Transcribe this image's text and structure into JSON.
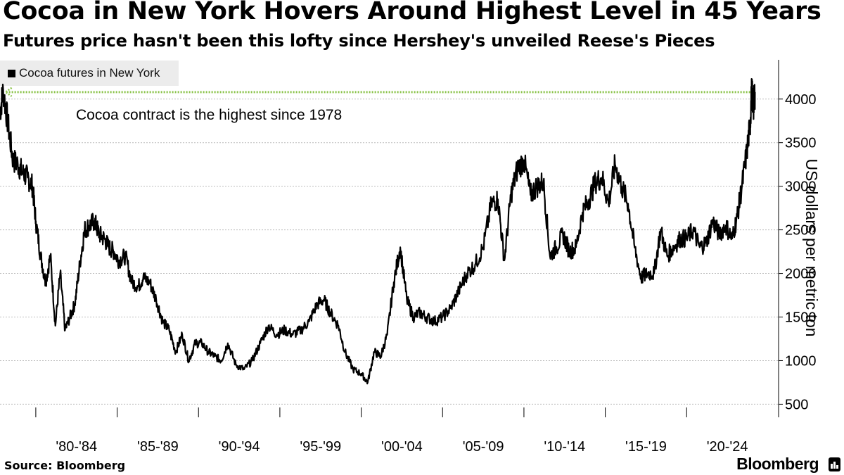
{
  "header": {
    "title": "Cocoa in New York Hovers Around Highest Level in 45 Years",
    "subtitle": "Futures price hasn't been this lofty since Hershey's unveiled Reese's Pieces"
  },
  "legend": {
    "label": "Cocoa futures in New York"
  },
  "annotation": {
    "text": "Cocoa contract is the highest since 1978"
  },
  "axis": {
    "ylabel": "US dollars per metric ton"
  },
  "footer": {
    "source": "Source: Bloomberg",
    "brand": "Bloomberg"
  },
  "colors": {
    "series": "#000000",
    "annotation_arrow": "#8bc34a",
    "gridline": "#bdbdbd"
  },
  "chart_data": {
    "type": "line",
    "title": "Cocoa in New York Hovers Around Highest Level in 45 Years",
    "subtitle": "Futures price hasn't been this lofty since Hershey's unveiled Reese's Pieces",
    "xlabel": "",
    "ylabel": "US dollars per metric ton",
    "x_tick_labels": [
      "'80-'84",
      "'85-'89",
      "'90-'94",
      "'95-'99",
      "'00-'04",
      "'05-'09",
      "'10-'14",
      "'15-'19",
      "'20-'24"
    ],
    "y_ticks": [
      500,
      1000,
      1500,
      2000,
      2500,
      3000,
      3500,
      4000
    ],
    "xlim": [
      1977.8,
      2024.7
    ],
    "ylim": [
      350,
      4450
    ],
    "grid": "horizontal dashed",
    "legend_position": "top-left",
    "annotation": {
      "text": "Cocoa contract is the highest since 1978",
      "level": 4080,
      "from_year": 1978.0,
      "to_year": 2024.2
    },
    "series": [
      {
        "name": "Cocoa futures in New York",
        "x": [
          1977.8,
          1978.0,
          1978.3,
          1978.6,
          1978.9,
          1979.2,
          1979.5,
          1979.8,
          1980.0,
          1980.3,
          1980.6,
          1980.9,
          1981.2,
          1981.5,
          1981.8,
          1982.1,
          1982.4,
          1982.7,
          1983.0,
          1983.3,
          1983.6,
          1983.9,
          1984.2,
          1984.5,
          1984.8,
          1985.1,
          1985.5,
          1985.9,
          1986.3,
          1986.6,
          1987.0,
          1987.4,
          1987.8,
          1988.2,
          1988.6,
          1989.0,
          1989.4,
          1989.8,
          1990.2,
          1990.6,
          1991.0,
          1991.4,
          1991.8,
          1992.3,
          1992.8,
          1993.3,
          1993.8,
          1994.3,
          1994.8,
          1995.3,
          1995.8,
          1996.3,
          1996.8,
          1997.3,
          1997.7,
          1998.1,
          1998.6,
          1999.0,
          1999.5,
          2000.0,
          2000.4,
          2000.8,
          2001.2,
          2001.6,
          2002.0,
          2002.4,
          2002.8,
          2003.2,
          2003.6,
          2004.0,
          2004.5,
          2005.0,
          2005.5,
          2006.0,
          2006.5,
          2007.0,
          2007.5,
          2008.0,
          2008.4,
          2008.8,
          2009.2,
          2009.6,
          2010.0,
          2010.4,
          2010.8,
          2011.2,
          2011.6,
          2012.0,
          2012.4,
          2012.8,
          2013.2,
          2013.6,
          2014.0,
          2014.4,
          2014.8,
          2015.2,
          2015.6,
          2016.0,
          2016.4,
          2016.8,
          2017.2,
          2017.6,
          2018.0,
          2018.4,
          2018.8,
          2019.2,
          2019.6,
          2020.0,
          2020.4,
          2020.8,
          2021.2,
          2021.6,
          2022.0,
          2022.4,
          2022.8,
          2023.1,
          2023.4,
          2023.7,
          2023.9,
          2024.0,
          2024.1,
          2024.2
        ],
        "values": [
          3850,
          4100,
          3700,
          3300,
          3250,
          3150,
          3100,
          3000,
          2600,
          2200,
          1900,
          2200,
          1400,
          2000,
          1350,
          1500,
          1650,
          2100,
          2500,
          2550,
          2600,
          2450,
          2400,
          2300,
          2250,
          2150,
          2200,
          1900,
          1850,
          1950,
          1900,
          1700,
          1450,
          1350,
          1100,
          1300,
          1000,
          1200,
          1200,
          1100,
          1050,
          1000,
          1200,
          950,
          900,
          1000,
          1200,
          1400,
          1300,
          1350,
          1300,
          1350,
          1450,
          1650,
          1700,
          1550,
          1400,
          1100,
          900,
          850,
          750,
          1100,
          1050,
          1300,
          1900,
          2300,
          1700,
          1500,
          1550,
          1500,
          1450,
          1500,
          1600,
          1800,
          2000,
          2100,
          2300,
          2800,
          2850,
          2150,
          2900,
          3200,
          3300,
          2900,
          3000,
          3050,
          2200,
          2300,
          2450,
          2250,
          2300,
          2700,
          2850,
          3050,
          3100,
          2800,
          3250,
          3000,
          2800,
          2300,
          1950,
          2000,
          2000,
          2500,
          2200,
          2300,
          2400,
          2400,
          2500,
          2300,
          2350,
          2600,
          2450,
          2550,
          2400,
          2650,
          3000,
          3400,
          3700,
          4100,
          3900,
          4080
        ]
      }
    ]
  }
}
